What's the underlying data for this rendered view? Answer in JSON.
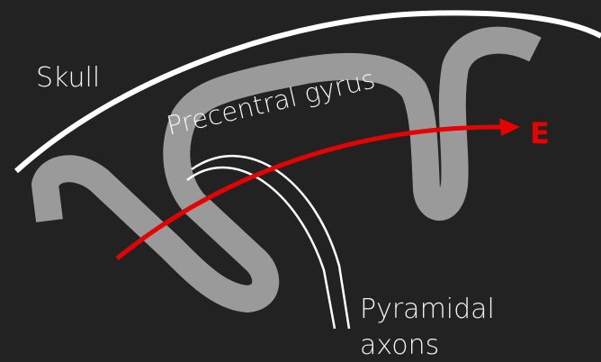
{
  "labels": {
    "skull": "Skull",
    "gyrus": "Precentral gyrus",
    "output": "E",
    "axons": [
      "Pyramidal",
      "axons"
    ]
  }
}
